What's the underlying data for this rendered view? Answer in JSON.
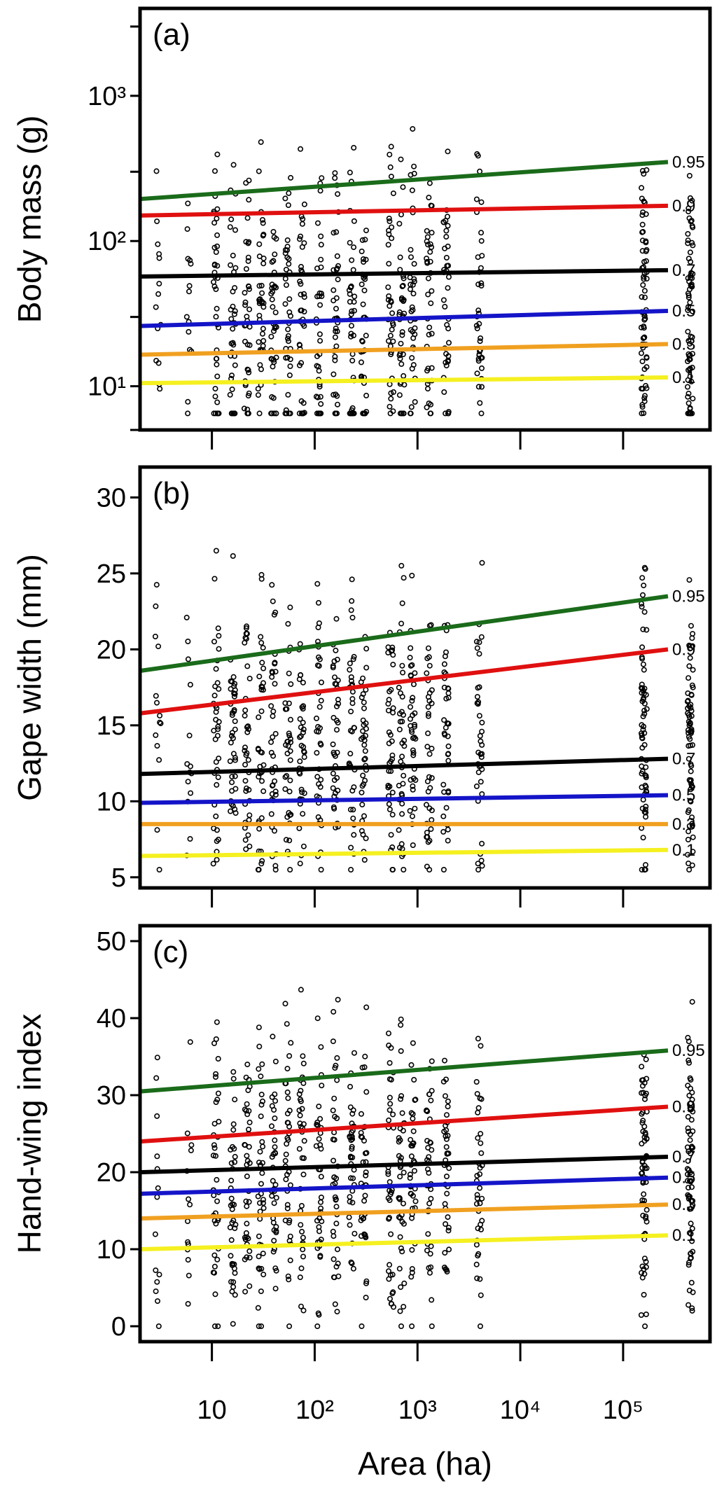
{
  "chart_data": [
    {
      "type": "scatter",
      "panel_label": "(a)",
      "title": "",
      "xlabel": "Area (ha)",
      "ylabel": "Body mass (g)",
      "xscale": "log",
      "yscale": "log",
      "xlim": [
        2,
        700000
      ],
      "ylim": [
        5,
        4000
      ],
      "y_ticks": [
        {
          "value": 10,
          "label": "10¹"
        },
        {
          "value": 100,
          "label": "10²"
        },
        {
          "value": 1000,
          "label": "10³"
        }
      ],
      "y_minor_ticks": [
        5,
        30,
        300,
        3000
      ],
      "x_ticks": [
        10,
        100,
        1000,
        10000,
        100000
      ],
      "point_columns_x": [
        3,
        6,
        11,
        16,
        22,
        30,
        40,
        55,
        75,
        110,
        160,
        230,
        300,
        550,
        700,
        900,
        1300,
        1900,
        4000,
        160000,
        450000
      ],
      "point_y_range": [
        6.5,
        3500
      ],
      "quantile_lines": [
        {
          "quantile": "0.95",
          "color": "#1a6b1a",
          "y_start": 195,
          "y_end": 350
        },
        {
          "quantile": "0.9",
          "color": "#e01010",
          "y_start": 150,
          "y_end": 175
        },
        {
          "quantile": "0.7",
          "color": "#000000",
          "y_start": 57,
          "y_end": 63
        },
        {
          "quantile": "0.5",
          "color": "#1414c8",
          "y_start": 26,
          "y_end": 33
        },
        {
          "quantile": "0.3",
          "color": "#f0a020",
          "y_start": 16.5,
          "y_end": 19.5
        },
        {
          "quantile": "0.1",
          "color": "#f5f020",
          "y_start": 10.5,
          "y_end": 11.5
        }
      ]
    },
    {
      "type": "scatter",
      "panel_label": "(b)",
      "title": "",
      "xlabel": "Area (ha)",
      "ylabel": "Gape width (mm)",
      "xscale": "log",
      "yscale": "linear",
      "xlim": [
        2,
        700000
      ],
      "ylim": [
        4.3,
        32
      ],
      "y_ticks": [
        {
          "value": 5,
          "label": "5"
        },
        {
          "value": 10,
          "label": "10"
        },
        {
          "value": 15,
          "label": "15"
        },
        {
          "value": 20,
          "label": "20"
        },
        {
          "value": 25,
          "label": "25"
        },
        {
          "value": 30,
          "label": "30"
        }
      ],
      "x_ticks": [
        10,
        100,
        1000,
        10000,
        100000
      ],
      "point_columns_x": [
        3,
        6,
        11,
        16,
        22,
        30,
        40,
        55,
        75,
        110,
        160,
        230,
        300,
        550,
        700,
        900,
        1300,
        1900,
        4000,
        160000,
        450000
      ],
      "point_y_range": [
        5.5,
        31.5
      ],
      "quantile_lines": [
        {
          "quantile": "0.95",
          "color": "#1a6b1a",
          "y_start": 18.6,
          "y_end": 23.5
        },
        {
          "quantile": "0.9",
          "color": "#e01010",
          "y_start": 15.8,
          "y_end": 20.0
        },
        {
          "quantile": "0.7",
          "color": "#000000",
          "y_start": 11.8,
          "y_end": 12.8
        },
        {
          "quantile": "0.5",
          "color": "#1414c8",
          "y_start": 9.9,
          "y_end": 10.4
        },
        {
          "quantile": "0.3",
          "color": "#f0a020",
          "y_start": 8.5,
          "y_end": 8.5
        },
        {
          "quantile": "0.1",
          "color": "#f5f020",
          "y_start": 6.4,
          "y_end": 6.8
        }
      ]
    },
    {
      "type": "scatter",
      "panel_label": "(c)",
      "title": "",
      "xlabel": "Area (ha)",
      "ylabel": "Hand-wing index",
      "xscale": "log",
      "yscale": "linear",
      "xlim": [
        2,
        700000
      ],
      "ylim": [
        -2,
        52
      ],
      "y_ticks": [
        {
          "value": 0,
          "label": "0"
        },
        {
          "value": 10,
          "label": "10"
        },
        {
          "value": 20,
          "label": "20"
        },
        {
          "value": 30,
          "label": "30"
        },
        {
          "value": 40,
          "label": "40"
        },
        {
          "value": 50,
          "label": "50"
        }
      ],
      "x_ticks": [
        10,
        100,
        1000,
        10000,
        100000
      ],
      "x_tick_labels": [
        "10",
        "10²",
        "10³",
        "10⁴",
        "10⁵"
      ],
      "point_columns_x": [
        3,
        6,
        11,
        16,
        22,
        30,
        40,
        55,
        75,
        110,
        160,
        230,
        300,
        550,
        700,
        900,
        1300,
        1900,
        4000,
        160000,
        450000
      ],
      "point_y_range": [
        0,
        51
      ],
      "quantile_lines": [
        {
          "quantile": "0.95",
          "color": "#1a6b1a",
          "y_start": 30.5,
          "y_end": 35.8
        },
        {
          "quantile": "0.9",
          "color": "#e01010",
          "y_start": 24.0,
          "y_end": 28.5
        },
        {
          "quantile": "0.7",
          "color": "#000000",
          "y_start": 20.0,
          "y_end": 22.0
        },
        {
          "quantile": "0.5",
          "color": "#1414c8",
          "y_start": 17.2,
          "y_end": 19.3
        },
        {
          "quantile": "0.3",
          "color": "#f0a020",
          "y_start": 14.0,
          "y_end": 15.8
        },
        {
          "quantile": "0.1",
          "color": "#f5f020",
          "y_start": 10.0,
          "y_end": 11.8
        }
      ]
    }
  ],
  "x_axis": {
    "title": "Area (ha)",
    "tick_labels": [
      "10",
      "10²",
      "10³",
      "10⁴",
      "10⁵"
    ]
  }
}
